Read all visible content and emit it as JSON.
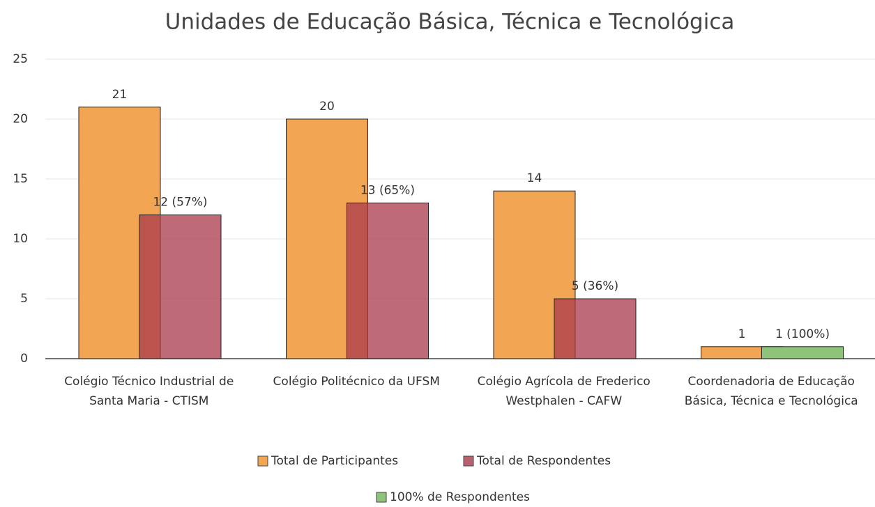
{
  "chart_data": {
    "type": "bar",
    "title": "Unidades de Educação Básica, Técnica e Tecnológica",
    "categories": [
      "Colégio Técnico Industrial de Santa Maria - CTISM",
      "Colégio Politécnico da UFSM",
      "Colégio Agrícola de Frederico Westphalen - CAFW",
      "Coordenadoria de Educação Básica, Técnica e Tecnológica"
    ],
    "series": [
      {
        "name": "Total de Participantes",
        "color": "#f2a553",
        "values": [
          21,
          20,
          14,
          1
        ]
      },
      {
        "name": "Total de Respondentes",
        "color": "#a83a4a",
        "values": [
          12,
          13,
          5,
          null
        ],
        "value_labels": [
          "12 (57%)",
          "13 (65%)",
          "5 (36%)",
          null
        ]
      },
      {
        "name": "100% de Respondentes",
        "color": "#8dc47a",
        "values": [
          null,
          null,
          null,
          1
        ],
        "value_labels": [
          null,
          null,
          null,
          "1 (100%)"
        ]
      }
    ],
    "ylim": [
      0,
      25
    ],
    "yticks": [
      0,
      5,
      10,
      15,
      20,
      25
    ],
    "grid": true
  }
}
